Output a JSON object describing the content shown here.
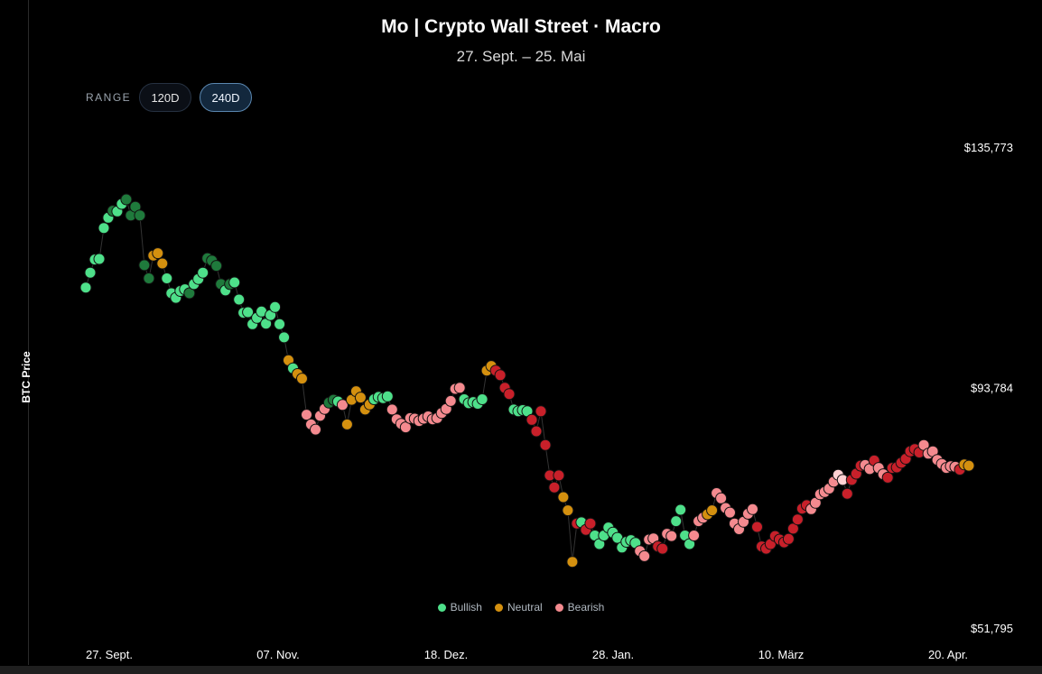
{
  "header": {
    "title": "Mo | Crypto Wall Street · Macro",
    "subtitle": "27. Sept. – 25. Mai"
  },
  "range": {
    "label": "RANGE",
    "options": [
      "120D",
      "240D"
    ],
    "selected": "240D"
  },
  "colors": {
    "bullish_light": "#4ee08a",
    "bullish_dark": "#1f7a3c",
    "neutral": "#d4900f",
    "bearish_light": "#f48a8f",
    "bearish_dark": "#c8202a",
    "bearish_pale": "#ffd0d2",
    "line": "#333333"
  },
  "legend": [
    {
      "label": "Bullish",
      "color": "#4ee08a"
    },
    {
      "label": "Neutral",
      "color": "#d4900f"
    },
    {
      "label": "Bearish",
      "color": "#f48a8f"
    }
  ],
  "chart_data": {
    "type": "scatter",
    "ylabel": "BTC Price",
    "y_ticks": [
      "$135,773",
      "$93,784",
      "$51,795"
    ],
    "ylim": [
      51795,
      135773
    ],
    "x_ticks": [
      "27. Sept.",
      "07. Nov.",
      "18. Dez.",
      "28. Jan.",
      "10. März",
      "20. Apr."
    ],
    "x_range_days": [
      0,
      240
    ],
    "grid": false,
    "legend_position": "bottom-center",
    "points": [
      [
        0,
        111400,
        "BL"
      ],
      [
        1,
        114000,
        "BL"
      ],
      [
        2,
        116300,
        "BL"
      ],
      [
        3,
        116400,
        "BL"
      ],
      [
        4,
        121800,
        "BL"
      ],
      [
        5,
        123600,
        "BL"
      ],
      [
        6,
        124800,
        "BD"
      ],
      [
        7,
        124700,
        "BL"
      ],
      [
        8,
        126000,
        "BL"
      ],
      [
        9,
        126800,
        "BD"
      ],
      [
        10,
        124000,
        "BD"
      ],
      [
        11,
        125500,
        "BD"
      ],
      [
        12,
        124000,
        "BD"
      ],
      [
        13,
        115300,
        "BD"
      ],
      [
        14,
        113000,
        "BD"
      ],
      [
        15,
        117000,
        "N"
      ],
      [
        16,
        117400,
        "N"
      ],
      [
        17,
        115600,
        "N"
      ],
      [
        18,
        113000,
        "BL"
      ],
      [
        19,
        110400,
        "BL"
      ],
      [
        20,
        109600,
        "BL"
      ],
      [
        21,
        110800,
        "BL"
      ],
      [
        22,
        111100,
        "BL"
      ],
      [
        23,
        110400,
        "BD"
      ],
      [
        24,
        112000,
        "BL"
      ],
      [
        25,
        112900,
        "BL"
      ],
      [
        26,
        114000,
        "BL"
      ],
      [
        27,
        116500,
        "BD"
      ],
      [
        28,
        116100,
        "BD"
      ],
      [
        29,
        115200,
        "BD"
      ],
      [
        30,
        112000,
        "BD"
      ],
      [
        31,
        110900,
        "BL"
      ],
      [
        32,
        112000,
        "BD"
      ],
      [
        33,
        112300,
        "BL"
      ],
      [
        34,
        109300,
        "BL"
      ],
      [
        35,
        107000,
        "BL"
      ],
      [
        36,
        107100,
        "BL"
      ],
      [
        37,
        105000,
        "BL"
      ],
      [
        38,
        106100,
        "BL"
      ],
      [
        39,
        107200,
        "BL"
      ],
      [
        40,
        105100,
        "BL"
      ],
      [
        41,
        106600,
        "BL"
      ],
      [
        42,
        108000,
        "BL"
      ],
      [
        43,
        105000,
        "BL"
      ],
      [
        44,
        102700,
        "BL"
      ],
      [
        45,
        98700,
        "N"
      ],
      [
        46,
        97300,
        "BL"
      ],
      [
        47,
        96300,
        "N"
      ],
      [
        48,
        95500,
        "N"
      ],
      [
        49,
        89200,
        "BL"
      ],
      [
        50,
        87500,
        "BL"
      ],
      [
        51,
        86600,
        "BL"
      ],
      [
        52,
        89000,
        "BL"
      ],
      [
        53,
        90200,
        "BL"
      ],
      [
        54,
        91300,
        "BD"
      ],
      [
        55,
        91800,
        "BD"
      ],
      [
        56,
        91500,
        "BL"
      ],
      [
        57,
        90900,
        "BD"
      ],
      [
        58,
        87500,
        "N"
      ],
      [
        59,
        91800,
        "N"
      ],
      [
        60,
        93300,
        "N"
      ],
      [
        61,
        92200,
        "N"
      ],
      [
        62,
        90100,
        "N"
      ],
      [
        63,
        91000,
        "N"
      ],
      [
        64,
        91900,
        "BL"
      ],
      [
        65,
        92300,
        "BL"
      ],
      [
        66,
        92100,
        "BL"
      ],
      [
        67,
        92400,
        "BL"
      ],
      [
        68,
        90100,
        "BL"
      ],
      [
        69,
        88400,
        "BL"
      ],
      [
        70,
        87600,
        "BL"
      ],
      [
        71,
        87000,
        "BL"
      ],
      [
        72,
        88600,
        "BL"
      ],
      [
        73,
        88500,
        "BL"
      ],
      [
        74,
        88100,
        "BL"
      ],
      [
        75,
        88500,
        "BL"
      ],
      [
        76,
        88900,
        "BL"
      ],
      [
        77,
        88400,
        "BL"
      ],
      [
        78,
        88600,
        "BL"
      ],
      [
        79,
        89500,
        "BL"
      ],
      [
        80,
        90200,
        "BL"
      ],
      [
        81,
        91600,
        "BL"
      ],
      [
        82,
        93700,
        "BL"
      ],
      [
        83,
        93900,
        "BL"
      ],
      [
        84,
        91900,
        "BL"
      ],
      [
        85,
        91200,
        "BL"
      ],
      [
        86,
        91400,
        "BL"
      ],
      [
        87,
        91100,
        "BL"
      ],
      [
        88,
        91900,
        "BL"
      ],
      [
        89,
        96900,
        "N"
      ],
      [
        90,
        97700,
        "N"
      ],
      [
        91,
        96900,
        "BD"
      ],
      [
        92,
        96100,
        "BD"
      ],
      [
        93,
        93900,
        "BD"
      ],
      [
        94,
        92800,
        "BD"
      ],
      [
        95,
        90100,
        "BL"
      ],
      [
        96,
        89800,
        "BL"
      ],
      [
        97,
        90000,
        "BL"
      ],
      [
        98,
        89800,
        "BL"
      ],
      [
        99,
        88300,
        "BD"
      ],
      [
        100,
        86300,
        "BD"
      ],
      [
        101,
        89800,
        "BD"
      ],
      [
        102,
        83900,
        "BD"
      ],
      [
        103,
        78600,
        "BD"
      ],
      [
        104,
        76500,
        "BD"
      ],
      [
        105,
        78600,
        "BD"
      ],
      [
        106,
        74800,
        "N"
      ],
      [
        107,
        72500,
        "N"
      ],
      [
        108,
        63500,
        "N"
      ],
      [
        109,
        70200,
        "BD"
      ],
      [
        110,
        70400,
        "BL"
      ],
      [
        111,
        69100,
        "BD"
      ],
      [
        112,
        70200,
        "BD"
      ],
      [
        113,
        68100,
        "BL"
      ],
      [
        114,
        66600,
        "BL"
      ],
      [
        115,
        68100,
        "BL"
      ],
      [
        116,
        69500,
        "BL"
      ],
      [
        117,
        68600,
        "BL"
      ],
      [
        118,
        67700,
        "BL"
      ],
      [
        119,
        66000,
        "BL"
      ],
      [
        120,
        67000,
        "BL"
      ],
      [
        121,
        67300,
        "BL"
      ],
      [
        122,
        66800,
        "BL"
      ],
      [
        123,
        65400,
        "BL"
      ],
      [
        124,
        64500,
        "BL"
      ],
      [
        125,
        67400,
        "BL"
      ],
      [
        126,
        67600,
        "BL"
      ],
      [
        127,
        66200,
        "BD"
      ],
      [
        128,
        65800,
        "BD"
      ],
      [
        129,
        68400,
        "BL"
      ],
      [
        130,
        68000,
        "BD"
      ],
      [
        131,
        70600,
        "BL"
      ],
      [
        132,
        72600,
        "BL"
      ],
      [
        133,
        68100,
        "BL"
      ],
      [
        134,
        66600,
        "BL"
      ],
      [
        135,
        68100,
        "BL"
      ],
      [
        136,
        70600,
        "BL"
      ],
      [
        137,
        71200,
        "BL"
      ],
      [
        138,
        71800,
        "N"
      ],
      [
        139,
        72500,
        "N"
      ],
      [
        140,
        75500,
        "BL"
      ],
      [
        141,
        74600,
        "BL"
      ],
      [
        142,
        72900,
        "BL"
      ],
      [
        143,
        72100,
        "BL"
      ],
      [
        144,
        70200,
        "BL"
      ],
      [
        145,
        69200,
        "BL"
      ],
      [
        146,
        70500,
        "BL"
      ],
      [
        147,
        71900,
        "BD"
      ],
      [
        148,
        72700,
        "BD"
      ],
      [
        149,
        69600,
        "BD"
      ],
      [
        150,
        66200,
        "BD"
      ],
      [
        151,
        65800,
        "BD"
      ],
      [
        152,
        66600,
        "BD"
      ],
      [
        153,
        68000,
        "BD"
      ],
      [
        154,
        67400,
        "BD"
      ],
      [
        155,
        66900,
        "BD"
      ],
      [
        156,
        67500,
        "BD"
      ],
      [
        157,
        69300,
        "BD"
      ],
      [
        158,
        70900,
        "BD"
      ],
      [
        159,
        72800,
        "BD"
      ],
      [
        160,
        73400,
        "BD"
      ],
      [
        161,
        72700,
        "BL"
      ],
      [
        162,
        73800,
        "BL"
      ],
      [
        163,
        75300,
        "BL"
      ],
      [
        164,
        75700,
        "BL"
      ],
      [
        165,
        76300,
        "BL"
      ],
      [
        166,
        77500,
        "BL"
      ],
      [
        167,
        78700,
        "BP"
      ],
      [
        168,
        77800,
        "BP"
      ],
      [
        169,
        75400,
        "BD"
      ],
      [
        170,
        77800,
        "BD"
      ],
      [
        171,
        78900,
        "BD"
      ],
      [
        172,
        80300,
        "BD"
      ],
      [
        173,
        80400,
        "BL"
      ],
      [
        174,
        79700,
        "BL"
      ],
      [
        175,
        81200,
        "BD"
      ],
      [
        176,
        79900,
        "BL"
      ],
      [
        177,
        78800,
        "BL"
      ],
      [
        178,
        78200,
        "BD"
      ],
      [
        179,
        79900,
        "BD"
      ],
      [
        180,
        80000,
        "BD"
      ],
      [
        181,
        80800,
        "BD"
      ],
      [
        182,
        81500,
        "BD"
      ],
      [
        183,
        82800,
        "BD"
      ],
      [
        184,
        83200,
        "BD"
      ],
      [
        185,
        82600,
        "BD"
      ],
      [
        186,
        83900,
        "BL"
      ],
      [
        187,
        82400,
        "BL"
      ],
      [
        188,
        82800,
        "BL"
      ],
      [
        189,
        81300,
        "BL"
      ],
      [
        190,
        80600,
        "BL"
      ],
      [
        191,
        79900,
        "BL"
      ],
      [
        192,
        80200,
        "BL"
      ],
      [
        193,
        80100,
        "BL"
      ],
      [
        194,
        79600,
        "BD"
      ],
      [
        195,
        80500,
        "N"
      ],
      [
        196,
        80300,
        "N"
      ]
    ]
  }
}
